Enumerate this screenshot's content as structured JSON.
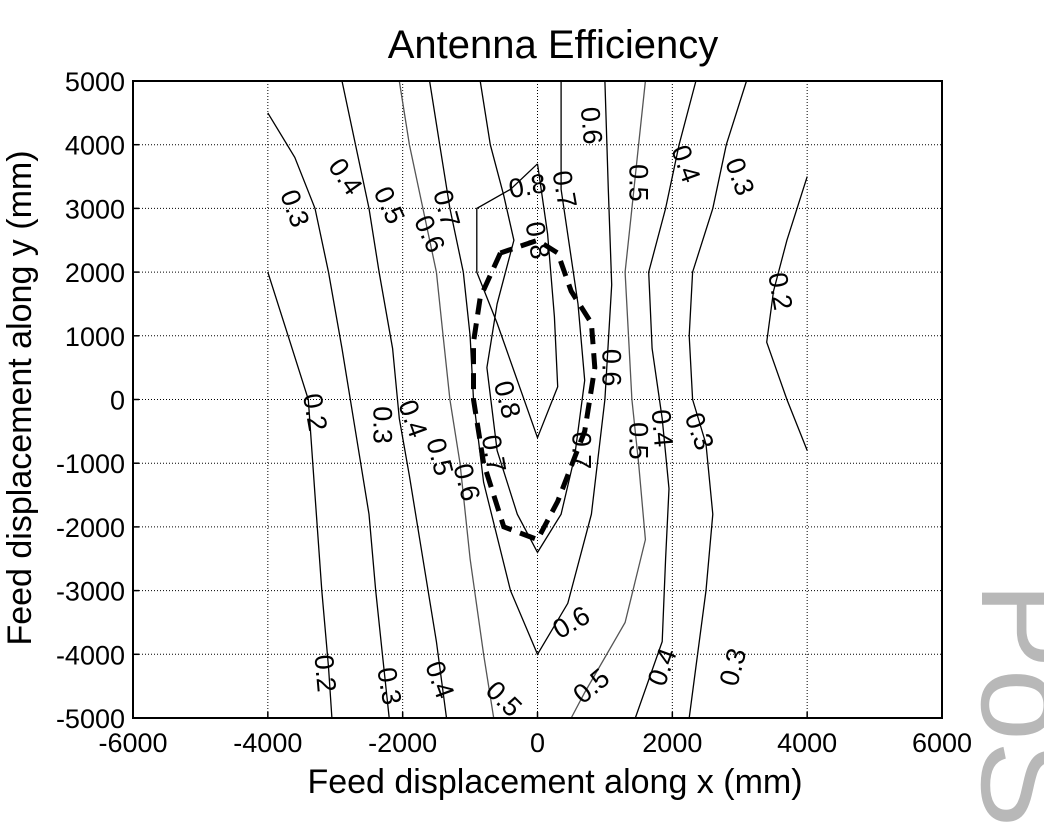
{
  "chart_data": {
    "type": "contour",
    "title": "Antenna Efficiency",
    "xlabel": "Feed displacement along x (mm)",
    "ylabel": "Feed displacement along y (mm)",
    "xlim": [
      -6000,
      6000
    ],
    "ylim": [
      -5000,
      5000
    ],
    "xticks": [
      -6000,
      -4000,
      -2000,
      0,
      2000,
      4000,
      6000
    ],
    "yticks": [
      5000,
      4000,
      3000,
      2000,
      1000,
      0,
      -1000,
      -2000,
      -3000,
      -4000,
      -5000
    ],
    "xtick_labels": [
      "-6000",
      "-4000",
      "-2000",
      "0",
      "2000",
      "4000",
      "6000"
    ],
    "ytick_labels": [
      "5000",
      "4000",
      "3000",
      "2000",
      "1000",
      "0",
      "-1000",
      "-2000",
      "-3000",
      "-4000",
      "-5000"
    ],
    "grid": true,
    "contours": [
      {
        "level": 0.3,
        "color": "#000000",
        "points": [
          [
            -4000,
            4500
          ],
          [
            -3600,
            3800
          ],
          [
            -3300,
            3000
          ],
          [
            -3100,
            2000
          ],
          [
            -2900,
            800
          ],
          [
            -2700,
            -500
          ],
          [
            -2500,
            -1800
          ],
          [
            -2400,
            -3000
          ],
          [
            -2300,
            -4000
          ],
          [
            -2200,
            -5000
          ]
        ]
      },
      {
        "level": 0.2,
        "color": "#000000",
        "points": [
          [
            -4000,
            2000
          ],
          [
            -3700,
            1000
          ],
          [
            -3400,
            0
          ],
          [
            -3300,
            -1500
          ],
          [
            -3200,
            -3000
          ],
          [
            -3100,
            -4200
          ],
          [
            -3050,
            -5000
          ]
        ]
      },
      {
        "level": 0.4,
        "color": "#000000",
        "points": [
          [
            -2900,
            5000
          ],
          [
            -2700,
            4000
          ],
          [
            -2500,
            3000
          ],
          [
            -2350,
            2000
          ],
          [
            -2150,
            800
          ],
          [
            -2050,
            -300
          ],
          [
            -1900,
            -1200
          ],
          [
            -1700,
            -2500
          ],
          [
            -1500,
            -3800
          ],
          [
            -1350,
            -5000
          ]
        ]
      },
      {
        "level": 0.5,
        "color": "#555555",
        "points": [
          [
            -2050,
            5000
          ],
          [
            -1900,
            4000
          ],
          [
            -1700,
            3000
          ],
          [
            -1500,
            2000
          ],
          [
            -1400,
            1000
          ],
          [
            -1300,
            0
          ],
          [
            -1150,
            -1000
          ],
          [
            -1000,
            -2500
          ],
          [
            -800,
            -4000
          ],
          [
            -650,
            -5000
          ]
        ]
      },
      {
        "level": 0.6,
        "color": "#000000",
        "points": [
          [
            -1600,
            5000
          ],
          [
            -1450,
            4000
          ],
          [
            -1300,
            3000
          ],
          [
            -1100,
            2000
          ],
          [
            -1000,
            1000
          ],
          [
            -950,
            0
          ],
          [
            -800,
            -1300
          ],
          [
            -400,
            -3000
          ],
          [
            0,
            -4000
          ],
          [
            450,
            -3200
          ],
          [
            800,
            -1800
          ],
          [
            1000,
            0
          ],
          [
            1100,
            1800
          ],
          [
            1050,
            3300
          ],
          [
            1000,
            5000
          ]
        ]
      },
      {
        "level": 0.7,
        "color": "#000000",
        "points": [
          [
            -850,
            5000
          ],
          [
            -700,
            4000
          ],
          [
            -500,
            3200
          ],
          [
            -350,
            2500
          ],
          [
            -600,
            1500
          ],
          [
            -750,
            500
          ],
          [
            -600,
            -800
          ],
          [
            -300,
            -1800
          ],
          [
            0,
            -2400
          ],
          [
            350,
            -1800
          ],
          [
            550,
            -900
          ],
          [
            700,
            300
          ],
          [
            600,
            1500
          ],
          [
            350,
            3300
          ],
          [
            350,
            5000
          ]
        ]
      },
      {
        "level": 0.8,
        "color": "#000000",
        "points": [
          [
            0,
            3700
          ],
          [
            -400,
            3300
          ],
          [
            -900,
            3000
          ],
          [
            -900,
            2000
          ],
          [
            -600,
            1200
          ],
          [
            -300,
            300
          ],
          [
            0,
            -600
          ],
          [
            300,
            200
          ],
          [
            250,
            1300
          ],
          [
            150,
            2600
          ],
          [
            0,
            3700
          ]
        ]
      },
      {
        "level": 0.5,
        "color": "#555555",
        "points": [
          [
            1600,
            5000
          ],
          [
            1500,
            4000
          ],
          [
            1400,
            3000
          ],
          [
            1300,
            2000
          ],
          [
            1350,
            1000
          ],
          [
            1400,
            0
          ],
          [
            1500,
            -1000
          ],
          [
            1600,
            -2200
          ],
          [
            1300,
            -3500
          ],
          [
            700,
            -4600
          ],
          [
            500,
            -5000
          ]
        ]
      },
      {
        "level": 0.4,
        "color": "#000000",
        "points": [
          [
            2350,
            5000
          ],
          [
            2100,
            4000
          ],
          [
            1900,
            3000
          ],
          [
            1650,
            2000
          ],
          [
            1700,
            800
          ],
          [
            1850,
            -300
          ],
          [
            1950,
            -1400
          ],
          [
            1900,
            -2500
          ],
          [
            1850,
            -3800
          ],
          [
            1450,
            -5000
          ]
        ]
      },
      {
        "level": 0.3,
        "color": "#000000",
        "points": [
          [
            3100,
            5000
          ],
          [
            2800,
            4000
          ],
          [
            2600,
            3000
          ],
          [
            2300,
            2000
          ],
          [
            2250,
            1000
          ],
          [
            2300,
            0
          ],
          [
            2500,
            -700
          ],
          [
            2600,
            -1800
          ],
          [
            2500,
            -3000
          ],
          [
            2350,
            -4200
          ],
          [
            2250,
            -5000
          ]
        ]
      },
      {
        "level": 0.2,
        "color": "#000000",
        "points": [
          [
            4000,
            3500
          ],
          [
            3700,
            2500
          ],
          [
            3500,
            1700
          ],
          [
            3400,
            900
          ],
          [
            3700,
            0
          ],
          [
            4000,
            -800
          ]
        ]
      }
    ],
    "region_boundary": {
      "style": "dashed",
      "points": [
        [
          -550,
          2300
        ],
        [
          -850,
          1600
        ],
        [
          -950,
          900
        ],
        [
          -950,
          0
        ],
        [
          -800,
          -1000
        ],
        [
          -500,
          -2000
        ],
        [
          0,
          -2200
        ],
        [
          300,
          -1600
        ],
        [
          700,
          -500
        ],
        [
          850,
          500
        ],
        [
          800,
          1200
        ],
        [
          500,
          1700
        ],
        [
          300,
          2300
        ],
        [
          0,
          2500
        ],
        [
          -550,
          2300
        ]
      ]
    },
    "contour_labels": [
      {
        "text": "0.3",
        "x": -3600,
        "y": 3000,
        "rot": 70
      },
      {
        "text": "0.4",
        "x": -2850,
        "y": 3500,
        "rot": 55
      },
      {
        "text": "0.5",
        "x": -2200,
        "y": 3050,
        "rot": 65
      },
      {
        "text": "0.6",
        "x": -1600,
        "y": 2600,
        "rot": 65
      },
      {
        "text": "0.7",
        "x": -1350,
        "y": 3000,
        "rot": 75
      },
      {
        "text": "0.8",
        "x": -150,
        "y": 3350,
        "rot": -10
      },
      {
        "text": "0.7",
        "x": 400,
        "y": 3300,
        "rot": 80
      },
      {
        "text": "0.8",
        "x": 0,
        "y": 2500,
        "rot": 80
      },
      {
        "text": "0.6",
        "x": 800,
        "y": 4300,
        "rot": 85
      },
      {
        "text": "0.5",
        "x": 1500,
        "y": 3400,
        "rot": 90
      },
      {
        "text": "0.4",
        "x": 2200,
        "y": 3700,
        "rot": 70
      },
      {
        "text": "0.3",
        "x": 3000,
        "y": 3500,
        "rot": 70
      },
      {
        "text": "0.2",
        "x": 3600,
        "y": 1700,
        "rot": 80
      },
      {
        "text": "0.6",
        "x": 1100,
        "y": 500,
        "rot": 90
      },
      {
        "text": "0.8",
        "x": -450,
        "y": 0,
        "rot": 75
      },
      {
        "text": "0.2",
        "x": -3300,
        "y": -200,
        "rot": 80
      },
      {
        "text": "0.3",
        "x": -2300,
        "y": -400,
        "rot": 90
      },
      {
        "text": "0.4",
        "x": -1850,
        "y": -300,
        "rot": 70
      },
      {
        "text": "0.5",
        "x": -1450,
        "y": -900,
        "rot": 75
      },
      {
        "text": "0.6",
        "x": -1050,
        "y": -1300,
        "rot": 75
      },
      {
        "text": "0.7",
        "x": -650,
        "y": -850,
        "rot": 80
      },
      {
        "text": "0.7",
        "x": 650,
        "y": -800,
        "rot": 90
      },
      {
        "text": "0.5",
        "x": 1500,
        "y": -650,
        "rot": 90
      },
      {
        "text": "0.4",
        "x": 1850,
        "y": -450,
        "rot": 85
      },
      {
        "text": "0.3",
        "x": 2400,
        "y": -500,
        "rot": 70
      },
      {
        "text": "0.6",
        "x": 500,
        "y": -3500,
        "rot": -30
      },
      {
        "text": "0.2",
        "x": -3150,
        "y": -4300,
        "rot": 85
      },
      {
        "text": "0.3",
        "x": -2200,
        "y": -4500,
        "rot": 80
      },
      {
        "text": "0.4",
        "x": -1450,
        "y": -4400,
        "rot": 70
      },
      {
        "text": "0.5",
        "x": -500,
        "y": -4700,
        "rot": 45
      },
      {
        "text": "0.5",
        "x": 800,
        "y": -4500,
        "rot": -40
      },
      {
        "text": "0.4",
        "x": 1850,
        "y": -4200,
        "rot": -70
      },
      {
        "text": "0.3",
        "x": 2900,
        "y": -4200,
        "rot": -75
      }
    ]
  },
  "watermark": "PoS"
}
